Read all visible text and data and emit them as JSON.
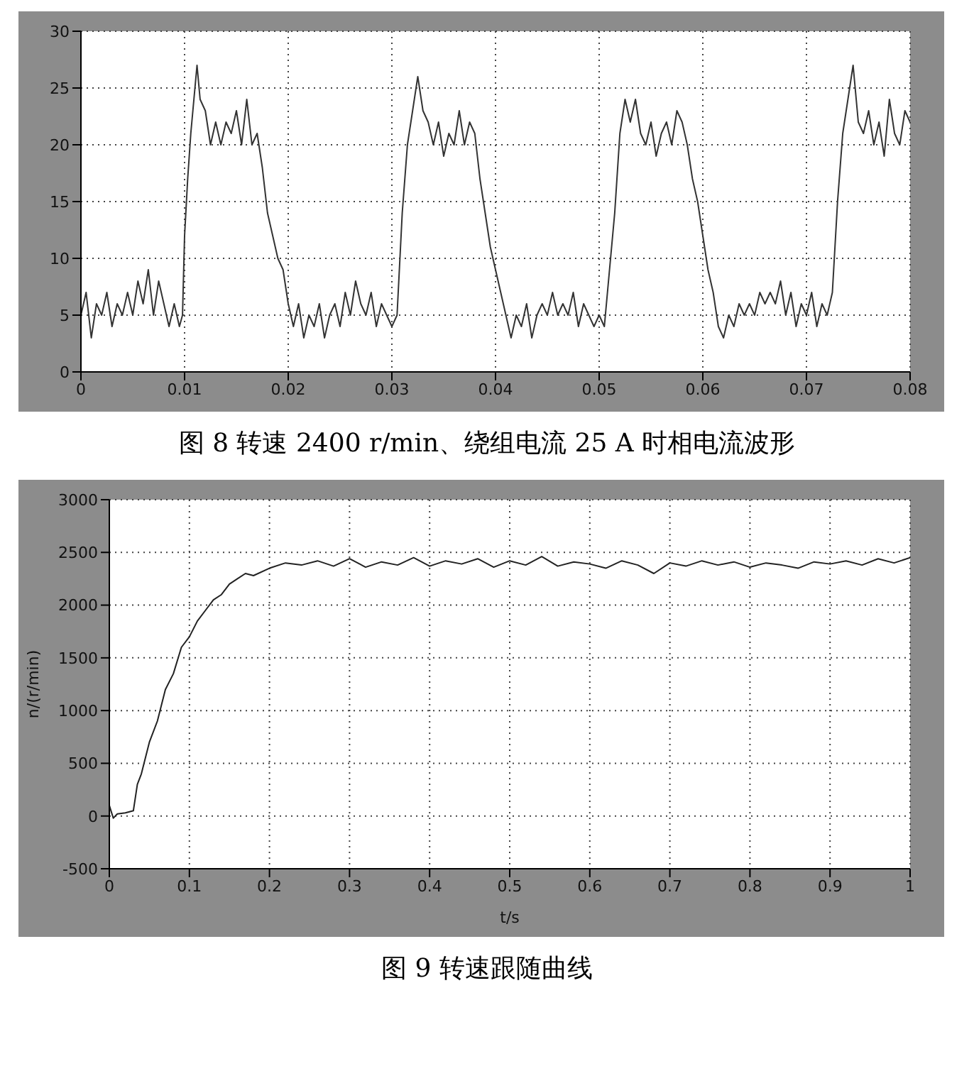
{
  "chart_data": [
    {
      "type": "line",
      "title": "图 8  转速 2400 r/min、绕组电流 25 A 时相电流波形",
      "grid": true,
      "marker": "none",
      "line_style": "solid",
      "xlim": [
        0,
        0.08
      ],
      "xticks": [
        0,
        0.01,
        0.02,
        0.03,
        0.04,
        0.05,
        0.06,
        0.07,
        0.08
      ],
      "ylim": [
        0,
        30
      ],
      "yticks": [
        0,
        5,
        10,
        15,
        20,
        25,
        30
      ],
      "x": [
        0,
        0.0005,
        0.001,
        0.0015,
        0.002,
        0.0025,
        0.003,
        0.0035,
        0.004,
        0.0045,
        0.005,
        0.0055,
        0.006,
        0.0065,
        0.007,
        0.0075,
        0.008,
        0.0085,
        0.009,
        0.0095,
        0.0098,
        0.01,
        0.0103,
        0.0106,
        0.0109,
        0.0112,
        0.0115,
        0.012,
        0.0125,
        0.013,
        0.0135,
        0.014,
        0.0145,
        0.015,
        0.0155,
        0.016,
        0.0165,
        0.017,
        0.0175,
        0.018,
        0.0185,
        0.019,
        0.0195,
        0.02,
        0.0205,
        0.021,
        0.0215,
        0.022,
        0.0225,
        0.023,
        0.0235,
        0.024,
        0.0245,
        0.025,
        0.0255,
        0.026,
        0.0265,
        0.027,
        0.0275,
        0.028,
        0.0285,
        0.029,
        0.0295,
        0.03,
        0.0305,
        0.031,
        0.0315,
        0.032,
        0.0325,
        0.033,
        0.0335,
        0.034,
        0.0345,
        0.035,
        0.0355,
        0.036,
        0.0365,
        0.037,
        0.0375,
        0.038,
        0.0385,
        0.039,
        0.0395,
        0.04,
        0.0405,
        0.041,
        0.0415,
        0.042,
        0.0425,
        0.043,
        0.0435,
        0.044,
        0.0445,
        0.045,
        0.0455,
        0.046,
        0.0465,
        0.047,
        0.0475,
        0.048,
        0.0485,
        0.049,
        0.0495,
        0.05,
        0.0505,
        0.0515,
        0.052,
        0.0525,
        0.053,
        0.0535,
        0.054,
        0.0545,
        0.055,
        0.0555,
        0.056,
        0.0565,
        0.057,
        0.0575,
        0.058,
        0.0585,
        0.059,
        0.0595,
        0.06,
        0.0605,
        0.061,
        0.0615,
        0.062,
        0.0625,
        0.063,
        0.0635,
        0.064,
        0.0645,
        0.065,
        0.0655,
        0.066,
        0.0665,
        0.067,
        0.0675,
        0.068,
        0.0685,
        0.069,
        0.0695,
        0.07,
        0.0705,
        0.071,
        0.0715,
        0.072,
        0.0725,
        0.073,
        0.0735,
        0.074,
        0.0745,
        0.075,
        0.0755,
        0.076,
        0.0765,
        0.077,
        0.0775,
        0.078,
        0.0785,
        0.079,
        0.0795,
        0.08
      ],
      "series": [
        {
          "color": "#333333",
          "values": [
            5,
            7,
            3,
            6,
            5,
            7,
            4,
            6,
            5,
            7,
            5,
            8,
            6,
            9,
            5,
            8,
            6,
            4,
            6,
            4,
            5,
            12,
            17,
            21,
            24,
            27,
            24,
            23,
            20,
            22,
            20,
            22,
            21,
            23,
            20,
            24,
            20,
            21,
            18,
            14,
            12,
            10,
            9,
            6,
            4,
            6,
            3,
            5,
            4,
            6,
            3,
            5,
            6,
            4,
            7,
            5,
            8,
            6,
            5,
            7,
            4,
            6,
            5,
            4,
            5,
            14,
            20,
            23,
            26,
            23,
            22,
            20,
            22,
            19,
            21,
            20,
            23,
            20,
            22,
            21,
            17,
            14,
            11,
            9,
            7,
            5,
            3,
            5,
            4,
            6,
            3,
            5,
            6,
            5,
            7,
            5,
            6,
            5,
            7,
            4,
            6,
            5,
            4,
            5,
            4,
            14,
            21,
            24,
            22,
            24,
            21,
            20,
            22,
            19,
            21,
            22,
            20,
            23,
            22,
            20,
            17,
            15,
            12,
            9,
            7,
            4,
            3,
            5,
            4,
            6,
            5,
            6,
            5,
            7,
            6,
            7,
            6,
            8,
            5,
            7,
            4,
            6,
            5,
            7,
            4,
            6,
            5,
            7,
            15,
            21,
            24,
            27,
            22,
            21,
            23,
            20,
            22,
            19,
            24,
            21,
            20,
            23,
            22
          ]
        }
      ]
    },
    {
      "type": "line",
      "title": "图 9  转速跟随曲线",
      "xlabel": "t/s",
      "ylabel": "n/(r/min)",
      "grid": true,
      "marker": "none",
      "line_style": "solid",
      "xlim": [
        0,
        1
      ],
      "xticks": [
        0,
        0.1,
        0.2,
        0.3,
        0.4,
        0.5,
        0.6,
        0.7,
        0.8,
        0.9,
        1
      ],
      "ylim": [
        -500,
        3000
      ],
      "yticks": [
        -500,
        0,
        500,
        1000,
        1500,
        2000,
        2500,
        3000
      ],
      "x": [
        0,
        0.005,
        0.01,
        0.02,
        0.03,
        0.035,
        0.04,
        0.05,
        0.06,
        0.07,
        0.08,
        0.09,
        0.1,
        0.11,
        0.12,
        0.13,
        0.14,
        0.15,
        0.16,
        0.17,
        0.18,
        0.2,
        0.22,
        0.24,
        0.26,
        0.28,
        0.3,
        0.32,
        0.34,
        0.36,
        0.38,
        0.4,
        0.42,
        0.44,
        0.46,
        0.48,
        0.5,
        0.52,
        0.54,
        0.56,
        0.58,
        0.6,
        0.62,
        0.64,
        0.66,
        0.68,
        0.7,
        0.72,
        0.74,
        0.76,
        0.78,
        0.8,
        0.82,
        0.84,
        0.86,
        0.88,
        0.9,
        0.92,
        0.94,
        0.96,
        0.98,
        1
      ],
      "series": [
        {
          "color": "#222222",
          "values": [
            100,
            -20,
            20,
            30,
            50,
            300,
            400,
            700,
            900,
            1200,
            1350,
            1600,
            1700,
            1850,
            1950,
            2050,
            2100,
            2200,
            2250,
            2300,
            2280,
            2350,
            2400,
            2380,
            2420,
            2370,
            2440,
            2360,
            2410,
            2380,
            2450,
            2370,
            2420,
            2390,
            2440,
            2360,
            2420,
            2380,
            2460,
            2370,
            2410,
            2390,
            2350,
            2420,
            2380,
            2300,
            2400,
            2370,
            2420,
            2380,
            2410,
            2360,
            2400,
            2380,
            2350,
            2410,
            2390,
            2420,
            2380,
            2440,
            2400,
            2450
          ]
        }
      ]
    }
  ]
}
